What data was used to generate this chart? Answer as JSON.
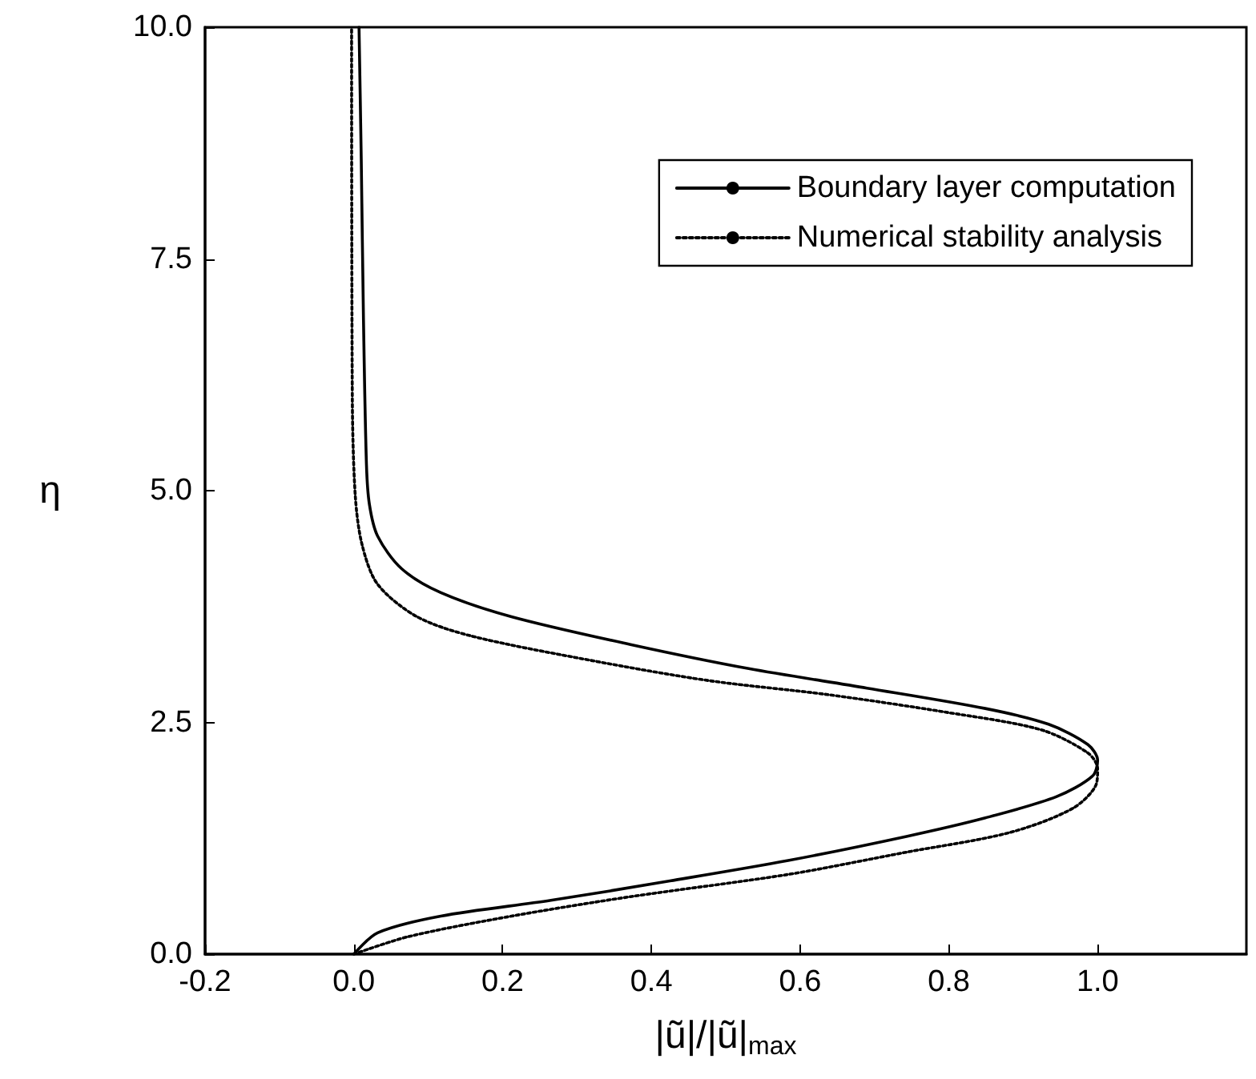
{
  "chart_data": {
    "type": "line",
    "xlabel": "|ũ|/|ũ|$_{max}$",
    "ylabel": "η",
    "xlim": [
      -0.2,
      1.2
    ],
    "xticks": [
      {
        "value": -0.2,
        "label": "-0.2"
      },
      {
        "value": 0,
        "label": "0.0"
      },
      {
        "value": 0.2,
        "label": "0.2"
      },
      {
        "value": 0.4,
        "label": "0.4"
      },
      {
        "value": 0.6,
        "label": "0.6"
      },
      {
        "value": 0.8,
        "label": "0.8"
      },
      {
        "value": 1,
        "label": "1.0"
      }
    ],
    "ylim": [
      0,
      10
    ],
    "yticks": [
      {
        "value": 0,
        "label": "0.0"
      },
      {
        "value": 2.5,
        "label": "2.5"
      },
      {
        "value": 5,
        "label": "5.0"
      },
      {
        "value": 7.5,
        "label": "7.5"
      },
      {
        "value": 10,
        "label": "10.0"
      }
    ],
    "grid": false,
    "legend": "top right",
    "marker": "none",
    "series": [
      {
        "name": "Boundary layer computation",
        "color": "#000000",
        "line_style": "solid",
        "x": [
          0,
          0.032,
          0.117,
          0.265,
          0.425,
          0.584,
          0.743,
          0.849,
          0.945,
          0.993,
          1.0,
          0.987,
          0.934,
          0.849,
          0.69,
          0.531,
          0.372,
          0.212,
          0.117,
          0.064,
          0.032,
          0.021,
          0.017,
          0.013,
          0.01,
          0.007
        ],
        "values": [
          0,
          0.23,
          0.41,
          0.58,
          0.79,
          1.01,
          1.27,
          1.47,
          1.7,
          1.92,
          2.09,
          2.26,
          2.48,
          2.65,
          2.87,
          3.08,
          3.34,
          3.64,
          3.9,
          4.16,
          4.51,
          4.85,
          5.28,
          6.84,
          8.57,
          10
        ]
      },
      {
        "name": "Numerical stability analysis",
        "color": "#000000",
        "line_style": "dotted",
        "x": [
          0,
          0.074,
          0.212,
          0.372,
          0.584,
          0.743,
          0.881,
          0.966,
          0.998,
          1.0,
          0.987,
          0.924,
          0.796,
          0.637,
          0.478,
          0.318,
          0.159,
          0.085,
          0.032,
          0.011,
          0.002,
          -0.002,
          -0.003
        ],
        "values": [
          0,
          0.19,
          0.41,
          0.62,
          0.86,
          1.1,
          1.31,
          1.57,
          1.83,
          2.0,
          2.17,
          2.42,
          2.61,
          2.8,
          2.95,
          3.17,
          3.43,
          3.64,
          3.99,
          4.42,
          4.94,
          5.98,
          10
        ]
      }
    ]
  }
}
